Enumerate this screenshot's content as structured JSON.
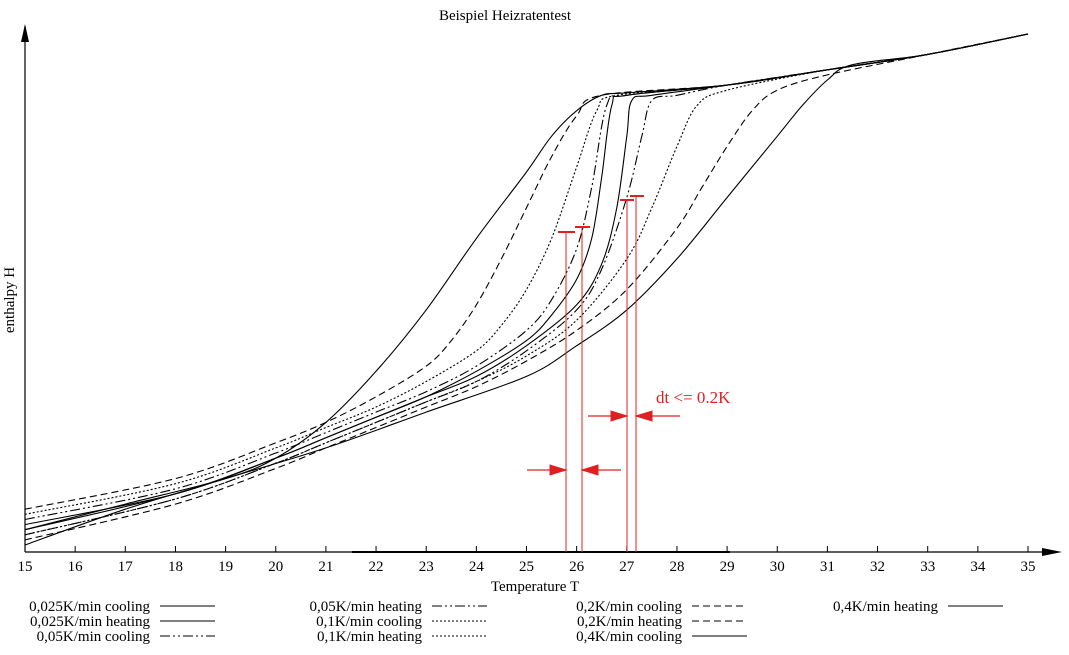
{
  "chart_data": {
    "type": "line",
    "title": "Beispiel Heizratentest",
    "xlabel": "Temperature T",
    "ylabel": "enthalpy H",
    "xlim": [
      15,
      35
    ],
    "x_ticks": [
      15,
      16,
      17,
      18,
      19,
      20,
      21,
      22,
      23,
      24,
      25,
      26,
      27,
      28,
      29,
      30,
      31,
      32,
      33,
      34,
      35
    ],
    "grid": false,
    "series": [
      {
        "name": "0,025K/min cooling",
        "points": [
          [
            15,
            0.04
          ],
          [
            18,
            0.1
          ],
          [
            20,
            0.17
          ],
          [
            21,
            0.21
          ],
          [
            22,
            0.25
          ],
          [
            23,
            0.29
          ],
          [
            24,
            0.34
          ],
          [
            25,
            0.4
          ],
          [
            25.5,
            0.45
          ],
          [
            26,
            0.52
          ],
          [
            26.3,
            0.6
          ],
          [
            26.5,
            0.72
          ],
          [
            26.7,
            0.86
          ],
          [
            27,
            0.88
          ],
          [
            29,
            0.9
          ],
          [
            31,
            0.93
          ],
          [
            33,
            0.96
          ],
          [
            35,
            1.0
          ]
        ]
      },
      {
        "name": "0,025K/min heating",
        "points": [
          [
            15,
            0.03
          ],
          [
            18,
            0.1
          ],
          [
            20,
            0.17
          ],
          [
            21,
            0.21
          ],
          [
            22,
            0.25
          ],
          [
            23,
            0.29
          ],
          [
            24,
            0.33
          ],
          [
            25,
            0.39
          ],
          [
            26,
            0.47
          ],
          [
            26.5,
            0.55
          ],
          [
            26.8,
            0.66
          ],
          [
            27,
            0.8
          ],
          [
            27.1,
            0.87
          ],
          [
            27.5,
            0.88
          ],
          [
            29,
            0.9
          ],
          [
            31,
            0.93
          ],
          [
            33,
            0.96
          ],
          [
            35,
            1.0
          ]
        ]
      },
      {
        "name": "0,05K/min cooling",
        "points": [
          [
            15,
            0.05
          ],
          [
            18,
            0.11
          ],
          [
            20,
            0.18
          ],
          [
            21,
            0.22
          ],
          [
            22,
            0.26
          ],
          [
            23,
            0.3
          ],
          [
            24,
            0.35
          ],
          [
            25,
            0.42
          ],
          [
            25.5,
            0.48
          ],
          [
            26,
            0.58
          ],
          [
            26.3,
            0.7
          ],
          [
            26.6,
            0.86
          ],
          [
            27,
            0.88
          ],
          [
            29,
            0.9
          ],
          [
            31,
            0.93
          ],
          [
            33,
            0.96
          ],
          [
            35,
            1.0
          ]
        ]
      },
      {
        "name": "0,05K/min heating",
        "points": [
          [
            15,
            0.02
          ],
          [
            18,
            0.09
          ],
          [
            20,
            0.16
          ],
          [
            21,
            0.2
          ],
          [
            22,
            0.24
          ],
          [
            23,
            0.28
          ],
          [
            24,
            0.32
          ],
          [
            25,
            0.38
          ],
          [
            26,
            0.46
          ],
          [
            26.5,
            0.54
          ],
          [
            27,
            0.68
          ],
          [
            27.3,
            0.8
          ],
          [
            27.5,
            0.87
          ],
          [
            28,
            0.88
          ],
          [
            29,
            0.9
          ],
          [
            31,
            0.93
          ],
          [
            33,
            0.96
          ],
          [
            35,
            1.0
          ]
        ]
      },
      {
        "name": "0,1K/min cooling",
        "points": [
          [
            15,
            0.06
          ],
          [
            18,
            0.12
          ],
          [
            20,
            0.19
          ],
          [
            21,
            0.23
          ],
          [
            22,
            0.27
          ],
          [
            23,
            0.32
          ],
          [
            24,
            0.38
          ],
          [
            24.5,
            0.43
          ],
          [
            25,
            0.5
          ],
          [
            25.5,
            0.6
          ],
          [
            26,
            0.74
          ],
          [
            26.4,
            0.85
          ],
          [
            26.8,
            0.88
          ],
          [
            29,
            0.9
          ],
          [
            31,
            0.93
          ],
          [
            33,
            0.96
          ],
          [
            35,
            1.0
          ]
        ]
      },
      {
        "name": "0,1K/min heating",
        "points": [
          [
            15,
            0.02
          ],
          [
            18,
            0.09
          ],
          [
            20,
            0.16
          ],
          [
            21,
            0.2
          ],
          [
            22,
            0.24
          ],
          [
            23,
            0.28
          ],
          [
            24,
            0.32
          ],
          [
            25,
            0.37
          ],
          [
            26,
            0.44
          ],
          [
            27,
            0.56
          ],
          [
            27.5,
            0.66
          ],
          [
            28,
            0.78
          ],
          [
            28.4,
            0.86
          ],
          [
            29,
            0.89
          ],
          [
            31,
            0.93
          ],
          [
            33,
            0.96
          ],
          [
            35,
            1.0
          ]
        ]
      },
      {
        "name": "0,2K/min cooling",
        "points": [
          [
            15,
            0.07
          ],
          [
            18,
            0.13
          ],
          [
            20,
            0.2
          ],
          [
            21,
            0.24
          ],
          [
            22,
            0.29
          ],
          [
            23,
            0.35
          ],
          [
            23.5,
            0.4
          ],
          [
            24,
            0.47
          ],
          [
            24.5,
            0.56
          ],
          [
            25,
            0.66
          ],
          [
            25.5,
            0.76
          ],
          [
            26,
            0.84
          ],
          [
            26.5,
            0.88
          ],
          [
            29,
            0.9
          ],
          [
            31,
            0.93
          ],
          [
            33,
            0.96
          ],
          [
            35,
            1.0
          ]
        ]
      },
      {
        "name": "0,2K/min heating",
        "points": [
          [
            15,
            0.01
          ],
          [
            18,
            0.08
          ],
          [
            20,
            0.15
          ],
          [
            21,
            0.19
          ],
          [
            22,
            0.23
          ],
          [
            23,
            0.27
          ],
          [
            24,
            0.31
          ],
          [
            25,
            0.36
          ],
          [
            26,
            0.42
          ],
          [
            27,
            0.5
          ],
          [
            28,
            0.62
          ],
          [
            28.5,
            0.7
          ],
          [
            29,
            0.78
          ],
          [
            29.5,
            0.85
          ],
          [
            30,
            0.89
          ],
          [
            31,
            0.92
          ],
          [
            33,
            0.96
          ],
          [
            35,
            1.0
          ]
        ]
      },
      {
        "name": "0,4K/min cooling",
        "points": [
          [
            15,
            0.03
          ],
          [
            17,
            0.08
          ],
          [
            19,
            0.13
          ],
          [
            20,
            0.17
          ],
          [
            21,
            0.24
          ],
          [
            22,
            0.34
          ],
          [
            23,
            0.46
          ],
          [
            24,
            0.6
          ],
          [
            25,
            0.73
          ],
          [
            25.5,
            0.8
          ],
          [
            26,
            0.85
          ],
          [
            26.5,
            0.88
          ],
          [
            27,
            0.885
          ],
          [
            29,
            0.9
          ],
          [
            31,
            0.93
          ],
          [
            33,
            0.96
          ],
          [
            35,
            1.0
          ]
        ]
      },
      {
        "name": "0,4K/min heating",
        "points": [
          [
            15,
            0.0
          ],
          [
            17,
            0.07
          ],
          [
            19,
            0.13
          ],
          [
            21,
            0.19
          ],
          [
            23,
            0.26
          ],
          [
            25,
            0.33
          ],
          [
            26,
            0.39
          ],
          [
            27,
            0.46
          ],
          [
            28,
            0.56
          ],
          [
            29,
            0.68
          ],
          [
            30,
            0.8
          ],
          [
            30.5,
            0.86
          ],
          [
            31,
            0.91
          ],
          [
            31.5,
            0.94
          ],
          [
            33,
            0.96
          ],
          [
            35,
            1.0
          ]
        ]
      }
    ],
    "legend": [
      [
        "0,025K/min cooling",
        "0,025K/min heating",
        "0,05K/min cooling"
      ],
      [
        "0,05K/min heating",
        "0,1K/min cooling",
        "0,1K/min heating"
      ],
      [
        "0,2K/min cooling",
        "0,2K/min heating",
        "0,4K/min cooling"
      ],
      [
        "0,4K/min heating"
      ]
    ],
    "legend_placement": "bottom",
    "annotation": {
      "text": "dt <= 0.2K",
      "color": "#e02020"
    }
  }
}
